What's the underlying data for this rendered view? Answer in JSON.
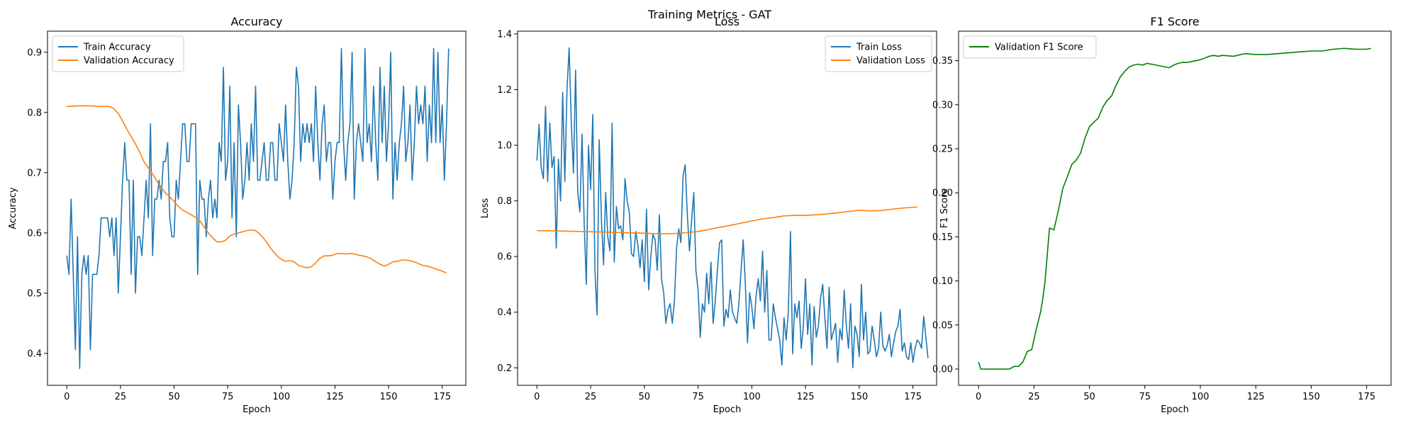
{
  "figure_title": "Training Metrics - GAT",
  "chart_data": [
    {
      "type": "line",
      "title": "Accuracy",
      "xlabel": "Epoch",
      "ylabel": "Accuracy",
      "xlim": [
        -9,
        186
      ],
      "ylim": [
        0.347,
        0.935
      ],
      "xticks": [
        0,
        25,
        50,
        75,
        100,
        125,
        150,
        175
      ],
      "yticks": [
        0.4,
        0.5,
        0.6,
        0.7,
        0.8,
        0.9
      ],
      "grid": false,
      "legend": "upper-left",
      "series": [
        {
          "name": "Train Accuracy",
          "color": "#1f77b4",
          "x_start": 0,
          "values": [
            0.5625,
            0.53125,
            0.65625,
            0.53125,
            0.40625,
            0.59375,
            0.375,
            0.53125,
            0.5625,
            0.53125,
            0.5625,
            0.40625,
            0.53125,
            0.53125,
            0.53125,
            0.5625,
            0.625,
            0.625,
            0.625,
            0.625,
            0.59375,
            0.625,
            0.5625,
            0.625,
            0.5,
            0.59375,
            0.6875,
            0.75,
            0.6875,
            0.6875,
            0.53125,
            0.6875,
            0.5,
            0.59375,
            0.59375,
            0.5625,
            0.625,
            0.6875,
            0.625,
            0.78125,
            0.5625,
            0.65625,
            0.65625,
            0.6875,
            0.65625,
            0.71875,
            0.71875,
            0.75,
            0.625,
            0.59375,
            0.59375,
            0.6875,
            0.65625,
            0.71875,
            0.78125,
            0.78125,
            0.71875,
            0.71875,
            0.78125,
            0.78125,
            0.78125,
            0.53125,
            0.6875,
            0.65625,
            0.65625,
            0.59375,
            0.65625,
            0.6875,
            0.625,
            0.65625,
            0.625,
            0.75,
            0.71875,
            0.875,
            0.6875,
            0.71875,
            0.84375,
            0.625,
            0.75,
            0.59375,
            0.8125,
            0.75,
            0.65625,
            0.6875,
            0.75,
            0.6875,
            0.78125,
            0.71875,
            0.84375,
            0.6875,
            0.6875,
            0.71875,
            0.75,
            0.6875,
            0.6875,
            0.75,
            0.75,
            0.6875,
            0.6875,
            0.78125,
            0.75,
            0.71875,
            0.8125,
            0.71875,
            0.65625,
            0.6875,
            0.75,
            0.875,
            0.84375,
            0.71875,
            0.78125,
            0.75,
            0.78125,
            0.75,
            0.78125,
            0.71875,
            0.84375,
            0.75,
            0.6875,
            0.78125,
            0.8125,
            0.71875,
            0.75,
            0.75,
            0.65625,
            0.71875,
            0.75,
            0.75,
            0.90625,
            0.75,
            0.6875,
            0.75,
            0.78125,
            0.9,
            0.65625,
            0.75,
            0.78125,
            0.75,
            0.71875,
            0.90625,
            0.75,
            0.78125,
            0.71875,
            0.84375,
            0.75,
            0.6875,
            0.875,
            0.75,
            0.84375,
            0.71875,
            0.78125,
            0.9,
            0.65625,
            0.75,
            0.6875,
            0.75,
            0.78125,
            0.84375,
            0.71875,
            0.75,
            0.8125,
            0.6875,
            0.75,
            0.84375,
            0.78125,
            0.8125,
            0.78125,
            0.84375,
            0.71875,
            0.8125,
            0.75,
            0.90625,
            0.75,
            0.9,
            0.75,
            0.8125,
            0.6875,
            0.78125,
            0.90625
          ]
        },
        {
          "name": "Validation Accuracy",
          "color": "#ff7f0e",
          "x": [
            0,
            5,
            10,
            15,
            20,
            22,
            24,
            26,
            28,
            30,
            32,
            34,
            36,
            38,
            40,
            42,
            44,
            46,
            48,
            50,
            52,
            54,
            56,
            58,
            60,
            62,
            64,
            66,
            68,
            70,
            72,
            74,
            76,
            78,
            80,
            82,
            84,
            86,
            88,
            90,
            92,
            94,
            96,
            98,
            100,
            102,
            104,
            106,
            108,
            110,
            112,
            114,
            116,
            118,
            120,
            122,
            124,
            126,
            128,
            130,
            132,
            134,
            136,
            138,
            140,
            142,
            144,
            146,
            148,
            150,
            152,
            154,
            156,
            158,
            160,
            162,
            164,
            166,
            168,
            170,
            172,
            174,
            176,
            177
          ],
          "y": [
            0.81,
            0.811,
            0.811,
            0.81,
            0.81,
            0.806,
            0.798,
            0.786,
            0.772,
            0.76,
            0.748,
            0.734,
            0.718,
            0.708,
            0.698,
            0.686,
            0.676,
            0.666,
            0.66,
            0.652,
            0.644,
            0.638,
            0.634,
            0.63,
            0.626,
            0.62,
            0.61,
            0.6,
            0.592,
            0.585,
            0.585,
            0.588,
            0.595,
            0.598,
            0.6,
            0.602,
            0.604,
            0.605,
            0.604,
            0.598,
            0.59,
            0.58,
            0.57,
            0.562,
            0.556,
            0.553,
            0.554,
            0.552,
            0.546,
            0.544,
            0.542,
            0.544,
            0.55,
            0.558,
            0.562,
            0.562,
            0.563,
            0.566,
            0.566,
            0.565,
            0.566,
            0.565,
            0.563,
            0.562,
            0.56,
            0.557,
            0.552,
            0.548,
            0.545,
            0.548,
            0.552,
            0.553,
            0.555,
            0.555,
            0.554,
            0.552,
            0.549,
            0.546,
            0.545,
            0.543,
            0.54,
            0.538,
            0.535,
            0.534
          ]
        }
      ]
    },
    {
      "type": "line",
      "title": "Loss",
      "xlabel": "Epoch",
      "ylabel": "Loss",
      "xlim": [
        -9,
        186
      ],
      "ylim": [
        0.137,
        1.41
      ],
      "xticks": [
        0,
        25,
        50,
        75,
        100,
        125,
        150,
        175
      ],
      "yticks": [
        0.2,
        0.4,
        0.6,
        0.8,
        1.0,
        1.2,
        1.4
      ],
      "grid": false,
      "legend": "upper-right",
      "series": [
        {
          "name": "Train Loss",
          "color": "#1f77b4",
          "x_start": 0,
          "values": [
            0.945,
            1.075,
            0.92,
            0.88,
            1.14,
            0.87,
            1.08,
            0.92,
            0.96,
            0.63,
            0.95,
            0.8,
            1.19,
            0.87,
            1.2,
            1.35,
            1.08,
            0.9,
            1.27,
            0.83,
            0.76,
            1.04,
            0.72,
            0.5,
            1.0,
            0.84,
            1.11,
            0.55,
            0.39,
            1.02,
            0.74,
            0.57,
            0.83,
            0.67,
            0.62,
            1.08,
            0.58,
            0.78,
            0.7,
            0.71,
            0.66,
            0.88,
            0.8,
            0.76,
            0.61,
            0.6,
            0.69,
            0.64,
            0.56,
            0.66,
            0.51,
            0.77,
            0.48,
            0.6,
            0.68,
            0.66,
            0.55,
            0.75,
            0.52,
            0.47,
            0.36,
            0.41,
            0.43,
            0.36,
            0.44,
            0.63,
            0.7,
            0.65,
            0.89,
            0.93,
            0.75,
            0.62,
            0.73,
            0.83,
            0.55,
            0.48,
            0.31,
            0.43,
            0.4,
            0.54,
            0.43,
            0.58,
            0.36,
            0.44,
            0.55,
            0.65,
            0.66,
            0.35,
            0.41,
            0.38,
            0.48,
            0.4,
            0.38,
            0.36,
            0.43,
            0.55,
            0.66,
            0.5,
            0.29,
            0.47,
            0.42,
            0.34,
            0.46,
            0.52,
            0.44,
            0.62,
            0.4,
            0.55,
            0.3,
            0.3,
            0.43,
            0.38,
            0.34,
            0.3,
            0.21,
            0.38,
            0.3,
            0.4,
            0.69,
            0.25,
            0.43,
            0.38,
            0.44,
            0.27,
            0.35,
            0.52,
            0.32,
            0.43,
            0.21,
            0.42,
            0.31,
            0.35,
            0.45,
            0.5,
            0.38,
            0.27,
            0.49,
            0.3,
            0.33,
            0.36,
            0.22,
            0.34,
            0.3,
            0.48,
            0.35,
            0.27,
            0.43,
            0.2,
            0.35,
            0.32,
            0.24,
            0.5,
            0.3,
            0.4,
            0.25,
            0.26,
            0.35,
            0.3,
            0.24,
            0.27,
            0.4,
            0.28,
            0.26,
            0.28,
            0.32,
            0.24,
            0.29,
            0.33,
            0.35,
            0.41,
            0.26,
            0.29,
            0.24,
            0.23,
            0.29,
            0.22,
            0.27,
            0.3,
            0.29,
            0.27,
            0.385,
            0.31,
            0.235
          ]
        },
        {
          "name": "Validation Loss",
          "color": "#ff7f0e",
          "x": [
            0,
            10,
            20,
            30,
            40,
            50,
            55,
            60,
            65,
            70,
            75,
            80,
            85,
            90,
            95,
            100,
            105,
            110,
            115,
            120,
            125,
            130,
            135,
            140,
            145,
            150,
            155,
            160,
            165,
            170,
            175,
            177
          ],
          "y": [
            0.693,
            0.692,
            0.69,
            0.688,
            0.686,
            0.684,
            0.682,
            0.682,
            0.683,
            0.686,
            0.69,
            0.697,
            0.705,
            0.712,
            0.72,
            0.728,
            0.735,
            0.74,
            0.746,
            0.748,
            0.748,
            0.75,
            0.753,
            0.757,
            0.762,
            0.766,
            0.764,
            0.765,
            0.77,
            0.774,
            0.777,
            0.778
          ]
        }
      ]
    },
    {
      "type": "line",
      "title": "F1 Score",
      "xlabel": "Epoch",
      "ylabel": "F1 Score",
      "xlim": [
        -9,
        186
      ],
      "ylim": [
        -0.0185,
        0.3835
      ],
      "xticks": [
        0,
        25,
        50,
        75,
        100,
        125,
        150,
        175
      ],
      "yticks": [
        0.0,
        0.05,
        0.1,
        0.15,
        0.2,
        0.25,
        0.3,
        0.35
      ],
      "grid": false,
      "legend": "upper-left",
      "series": [
        {
          "name": "Validation F1 Score",
          "color": "#008000",
          "x": [
            0,
            1,
            5,
            10,
            14,
            16,
            18,
            20,
            22,
            24,
            26,
            28,
            29,
            30,
            31,
            32,
            34,
            36,
            38,
            40,
            42,
            44,
            46,
            48,
            50,
            52,
            54,
            56,
            58,
            60,
            62,
            64,
            66,
            68,
            70,
            72,
            74,
            76,
            78,
            80,
            82,
            84,
            86,
            88,
            90,
            92,
            94,
            96,
            98,
            100,
            102,
            104,
            106,
            108,
            110,
            115,
            120,
            125,
            130,
            135,
            140,
            145,
            150,
            155,
            160,
            165,
            170,
            175,
            177
          ],
          "y": [
            0.008,
            0.0,
            0.0,
            0.0,
            0.0,
            0.003,
            0.003,
            0.008,
            0.02,
            0.022,
            0.045,
            0.065,
            0.08,
            0.1,
            0.13,
            0.16,
            0.158,
            0.18,
            0.205,
            0.218,
            0.232,
            0.237,
            0.245,
            0.262,
            0.275,
            0.28,
            0.285,
            0.297,
            0.305,
            0.31,
            0.322,
            0.332,
            0.338,
            0.343,
            0.345,
            0.346,
            0.345,
            0.347,
            0.346,
            0.345,
            0.344,
            0.343,
            0.342,
            0.345,
            0.347,
            0.348,
            0.348,
            0.349,
            0.35,
            0.351,
            0.353,
            0.355,
            0.356,
            0.355,
            0.356,
            0.355,
            0.358,
            0.357,
            0.357,
            0.358,
            0.359,
            0.36,
            0.361,
            0.361,
            0.363,
            0.364,
            0.363,
            0.363,
            0.364
          ]
        }
      ]
    }
  ]
}
